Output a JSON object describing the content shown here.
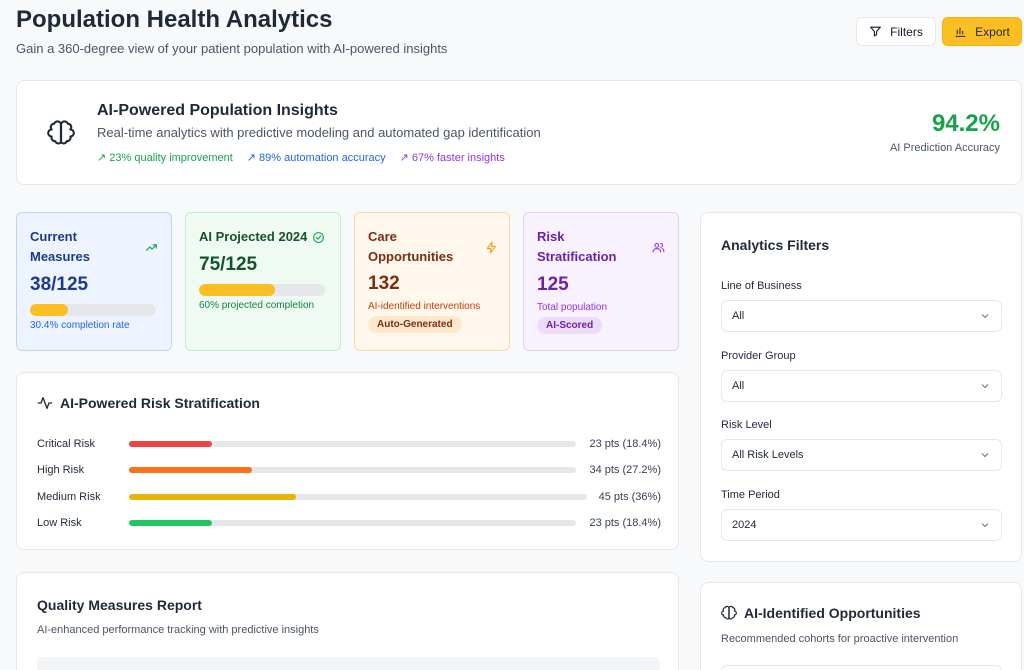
{
  "header": {
    "title": "Population Health Analytics",
    "subtitle": "Gain a 360-degree view of your patient population with AI-powered insights",
    "filters_label": "Filters",
    "export_label": "Export"
  },
  "insights": {
    "title": "AI-Powered Population Insights",
    "description": "Real-time analytics with predictive modeling and automated gap identification",
    "tags": [
      "↗ 23% quality improvement",
      "↗ 89% automation accuracy",
      "↗ 67% faster insights"
    ],
    "accuracy_value": "94.2%",
    "accuracy_label": "AI Prediction Accuracy"
  },
  "stats": [
    {
      "title": "Current Measures",
      "value": "38/125",
      "progress": 0.304,
      "note": "30.4% completion rate",
      "icon": "trending-up-icon"
    },
    {
      "title": "AI Projected 2024",
      "value": "75/125",
      "progress": 0.6,
      "note": "60% projected completion",
      "icon": "check-circle-icon"
    },
    {
      "title": "Care Opportunities",
      "value": "132",
      "note": "AI-identified interventions",
      "badge": "Auto-Generated",
      "icon": "zap-icon"
    },
    {
      "title": "Risk Stratification",
      "value": "125",
      "note": "Total population",
      "badge": "AI-Scored",
      "icon": "users-icon"
    }
  ],
  "risk": {
    "title": "AI-Powered Risk Stratification",
    "rows": [
      {
        "label": "Critical Risk",
        "value": "23 pts (18.4%)",
        "fraction": 0.184,
        "color": "#ef4444"
      },
      {
        "label": "High Risk",
        "value": "34 pts (27.2%)",
        "fraction": 0.272,
        "color": "#f97316"
      },
      {
        "label": "Medium Risk",
        "value": "45 pts (36%)",
        "fraction": 0.36,
        "color": "#eab308"
      },
      {
        "label": "Low Risk",
        "value": "23 pts (18.4%)",
        "fraction": 0.184,
        "color": "#22c55e"
      }
    ]
  },
  "quality": {
    "title": "Quality Measures Report",
    "subtitle": "AI-enhanced performance tracking with predictive insights"
  },
  "filters": {
    "title": "Analytics Filters",
    "items": [
      {
        "label": "Line of Business",
        "value": "All"
      },
      {
        "label": "Provider Group",
        "value": "All"
      },
      {
        "label": "Risk Level",
        "value": "All Risk Levels"
      },
      {
        "label": "Time Period",
        "value": "2024"
      }
    ]
  },
  "opportunities": {
    "title": "AI-Identified Opportunities",
    "subtitle": "Recommended cohorts for proactive intervention"
  }
}
